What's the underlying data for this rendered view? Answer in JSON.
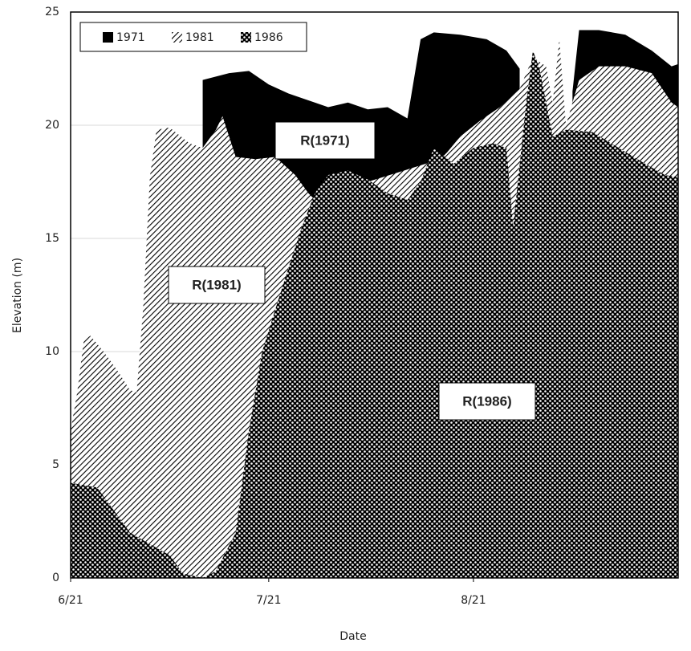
{
  "chart_data": {
    "type": "area",
    "x_label": "Date",
    "y_label": "Elevation (m)",
    "xlim": [
      0,
      92
    ],
    "xticks": [
      {
        "value": 0,
        "label": "6/21"
      },
      {
        "value": 30,
        "label": "7/21"
      },
      {
        "value": 61,
        "label": "8/21"
      }
    ],
    "ylim": [
      0,
      25
    ],
    "yticks": [
      0,
      5,
      10,
      15,
      20,
      25
    ],
    "grid": true,
    "legend": "top-left",
    "annotations": [
      "R(1971)",
      "R(1981)",
      "R(1986)"
    ],
    "series": [
      {
        "name": "1971",
        "color": "#000000",
        "pattern": "solid",
        "x": [
          20,
          24,
          27,
          30,
          33,
          36,
          39,
          42,
          45,
          48,
          51,
          53,
          55,
          59,
          63,
          66,
          68,
          70,
          76,
          77,
          80,
          84,
          88,
          91,
          92
        ],
        "values": [
          22.0,
          22.3,
          22.4,
          21.8,
          21.4,
          21.1,
          20.8,
          21.0,
          20.7,
          20.8,
          20.3,
          23.8,
          24.1,
          24.0,
          23.8,
          23.3,
          22.5,
          null,
          21.5,
          24.2,
          24.2,
          24.0,
          23.3,
          22.6,
          22.7
        ]
      },
      {
        "name": "1981",
        "color": "#000000",
        "pattern": "hatch",
        "x": [
          0,
          1,
          2,
          3,
          5,
          7,
          9,
          10,
          11,
          12,
          13,
          15,
          18,
          20,
          22,
          23,
          25,
          28,
          31,
          34,
          36,
          37,
          45,
          56,
          57,
          59,
          62,
          65,
          68,
          70,
          72,
          73,
          74,
          75,
          77,
          80,
          84,
          88,
          91,
          92
        ],
        "values": [
          6.5,
          8.2,
          10.5,
          10.7,
          10.0,
          9.2,
          8.3,
          8.2,
          12.0,
          17.7,
          19.8,
          19.9,
          19.2,
          19.0,
          19.8,
          20.4,
          18.6,
          18.5,
          18.6,
          17.8,
          17.0,
          16.7,
          17.5,
          18.5,
          18.8,
          19.5,
          20.2,
          20.8,
          21.6,
          23.0,
          22.6,
          21.0,
          23.8,
          20.0,
          22.0,
          22.6,
          22.6,
          22.3,
          21.0,
          20.8
        ]
      },
      {
        "name": "1986",
        "color": "#000000",
        "pattern": "dots",
        "x": [
          0,
          4,
          7,
          9,
          12,
          15,
          17,
          20,
          22,
          25,
          27,
          29,
          32,
          35,
          37,
          39,
          42,
          45,
          48,
          51,
          53,
          55,
          58,
          61,
          64,
          66,
          67,
          69,
          70,
          71,
          73,
          75,
          79,
          83,
          87,
          90,
          92
        ],
        "values": [
          4.2,
          4.0,
          2.8,
          2.0,
          1.5,
          1.0,
          0.2,
          0,
          0.3,
          2.0,
          6.5,
          10.0,
          12.8,
          15.5,
          17.0,
          17.8,
          18.0,
          17.6,
          17.0,
          16.7,
          17.5,
          19.0,
          18.3,
          19.0,
          19.2,
          19.0,
          15.5,
          21.0,
          23.3,
          22.5,
          19.5,
          19.8,
          19.7,
          19.0,
          18.3,
          17.8,
          17.7
        ]
      }
    ]
  }
}
